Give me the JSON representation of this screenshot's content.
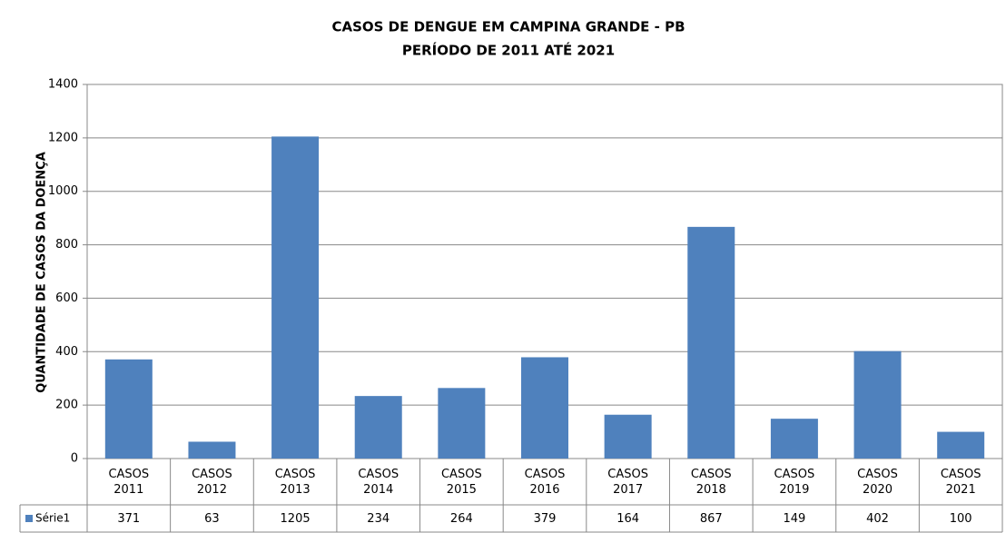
{
  "chart_data": {
    "type": "bar",
    "title": "CASOS DE DENGUE EM CAMPINA GRANDE - PB",
    "subtitle": "PERÍODO DE 2011 ATÉ 2021",
    "y_label": "QUANTIDADE DE CASOS DA DOENÇA",
    "categories": [
      "CASOS 2011",
      "CASOS 2012",
      "CASOS 2013",
      "CASOS 2014",
      "CASOS 2015",
      "CASOS 2016",
      "CASOS 2017",
      "CASOS 2018",
      "CASOS 2019",
      "CASOS 2020",
      "CASOS 2021"
    ],
    "series": [
      {
        "name": "Série1",
        "color": "#4f81bd",
        "values": [
          371,
          63,
          1205,
          234,
          264,
          379,
          164,
          867,
          149,
          402,
          100
        ]
      }
    ],
    "ylim": [
      0,
      1400
    ],
    "yticks": [
      0,
      200,
      400,
      600,
      800,
      1000,
      1200,
      1400
    ],
    "grid": true,
    "data_table": true
  }
}
